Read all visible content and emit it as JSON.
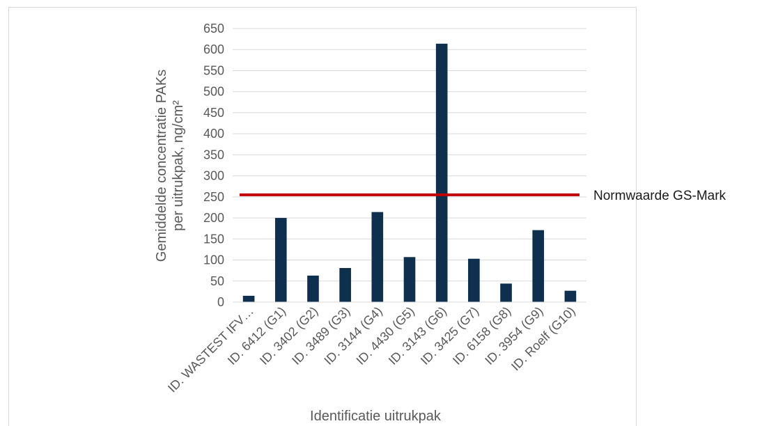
{
  "chart_data": {
    "type": "bar",
    "categories": [
      "ID. WASTEST IFV…",
      "ID. 6412 (G1)",
      "ID. 3402 (G2)",
      "ID. 3489 (G3)",
      "ID. 3144 (G4)",
      "ID. 4430 (G5)",
      "ID. 3143 (G6)",
      "ID. 3425 (G7)",
      "ID. 6158 (G8)",
      "ID. 3954 (G9)",
      "ID. Roelf (G10)"
    ],
    "values": [
      15,
      200,
      63,
      81,
      214,
      107,
      614,
      103,
      44,
      171,
      27
    ],
    "xlabel": "Identificatie uitrukpak",
    "ylabel_line1": "Gemiddelde concentratie PAKs",
    "ylabel_line2": "per uitrukpak, ng/cm²",
    "ylim": [
      0,
      650
    ],
    "yticks": [
      0,
      50,
      100,
      150,
      200,
      250,
      300,
      350,
      400,
      450,
      500,
      550,
      600,
      650
    ],
    "grid": true,
    "reference_line": {
      "label": "Normwaarde GS-Mark",
      "value": 255,
      "color": "#c00000"
    },
    "bar_color": "#0e2f4e",
    "grid_color": "#d9d9d9"
  }
}
